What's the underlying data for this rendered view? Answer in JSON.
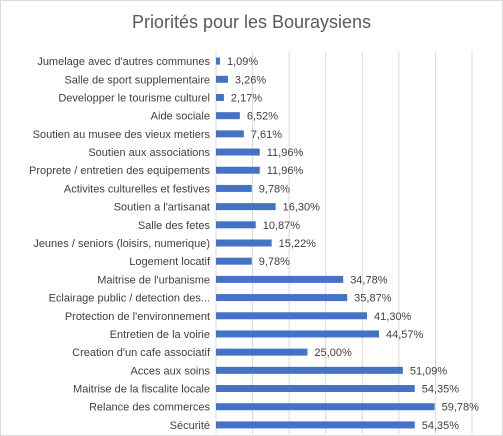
{
  "chart_data": {
    "type": "bar",
    "orientation": "horizontal",
    "title": "Priorités pour les Bouraysiens",
    "xlim": [
      0,
      70
    ],
    "grid": true,
    "legend": "none",
    "bar_color": "#4472c4",
    "categories": [
      "Jumelage avec d'autres communes",
      "Salle de sport supplementaire",
      "Developper le tourisme culturel",
      "Aide sociale",
      "Soutien au musee des vieux metiers",
      "Soutien aux associations",
      "Proprete / entretien des equipements",
      "Activites culturelles et festives",
      "Soutien a l'artisanat",
      "Salle des fetes",
      "Jeunes / seniors (loisirs, numerique)",
      "Logement locatif",
      "Maitrise de l'urbanisme",
      "Eclairage public / detection des...",
      "Protection de l'environnement",
      "Entretien de la voirie",
      "Creation d'un cafe associatif",
      "Acces aux soins",
      "Maitrise de la fiscalite locale",
      "Relance des commerces",
      "Sécurité"
    ],
    "values": [
      1.09,
      3.26,
      2.17,
      6.52,
      7.61,
      11.96,
      11.96,
      9.78,
      16.3,
      10.87,
      15.22,
      9.78,
      34.78,
      35.87,
      41.3,
      44.57,
      25.0,
      51.09,
      54.35,
      59.78,
      54.35
    ],
    "value_labels": [
      "1,09%",
      "3,26%",
      "2,17%",
      "6,52%",
      "7,61%",
      "11,96%",
      "11,96%",
      "9,78%",
      "16,30%",
      "10,87%",
      "15,22%",
      "9,78%",
      "34,78%",
      "35,87%",
      "41,30%",
      "44,57%",
      "25,00%",
      "51,09%",
      "54,35%",
      "59,78%",
      "54,35%"
    ]
  }
}
